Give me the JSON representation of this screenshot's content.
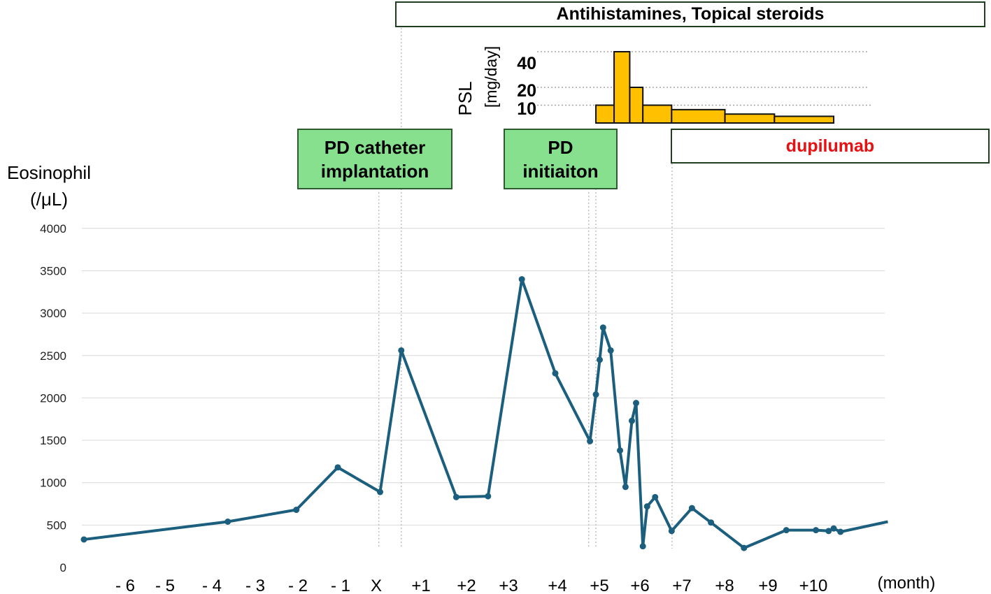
{
  "chart_data": {
    "type": "line",
    "ylabel_line1": "Eosinophil",
    "ylabel_line2": "(/μL)",
    "xunit": "(month)",
    "ylim": [
      0,
      4000
    ],
    "yticks": [
      0,
      500,
      1000,
      1500,
      2000,
      2500,
      3000,
      3500,
      4000
    ],
    "xlim": [
      -7,
      12
    ],
    "xticks": [
      {
        "pos": -6,
        "label": "- 6"
      },
      {
        "pos": -5,
        "label": "- 5"
      },
      {
        "pos": -4,
        "label": "- 4"
      },
      {
        "pos": -3,
        "label": "- 3"
      },
      {
        "pos": -2,
        "label": "- 2"
      },
      {
        "pos": -1,
        "label": "- 1"
      },
      {
        "pos": 0,
        "label": "X"
      },
      {
        "pos": 1,
        "label": "+1"
      },
      {
        "pos": 2,
        "label": "+2"
      },
      {
        "pos": 3,
        "label": "+3"
      },
      {
        "pos": 4,
        "label": "+4"
      },
      {
        "pos": 5,
        "label": "+5"
      },
      {
        "pos": 6,
        "label": "+6"
      },
      {
        "pos": 7,
        "label": "+7"
      },
      {
        "pos": 8,
        "label": "+8"
      },
      {
        "pos": 9,
        "label": "+9"
      },
      {
        "pos": 10,
        "label": "+10"
      }
    ],
    "grid": true,
    "line_color": "#1b5e7e",
    "series": [
      {
        "x": [
          -7.0,
          -3.6,
          -1.98,
          -1.0,
          0.0,
          0.5,
          1.8,
          2.55,
          3.35,
          4.14,
          4.96,
          5.1,
          5.19,
          5.27,
          5.45,
          5.67,
          5.8,
          5.95,
          6.05,
          6.21,
          6.31,
          6.5,
          6.89,
          7.37,
          7.82,
          8.6,
          9.6,
          10.3,
          10.6,
          10.72,
          10.88,
          12.0
        ],
        "y": [
          330,
          540,
          680,
          1180,
          890,
          2560,
          830,
          840,
          3400,
          2290,
          1490,
          2040,
          2450,
          2830,
          2560,
          1380,
          950,
          1730,
          1940,
          250,
          720,
          830,
          430,
          700,
          530,
          230,
          440,
          440,
          430,
          460,
          420,
          540
        ]
      }
    ],
    "markers": [
      {
        "label": "PD catheter\nimplantation",
        "at_month": -0.03
      },
      {
        "label": "PD\ninitiaiton",
        "at_month": 4.93
      }
    ],
    "treatments": [
      {
        "label": "Antihistamines, Topical steroids",
        "start_month": 0.5,
        "color": "#000000"
      },
      {
        "label": "dupilumab",
        "start_month": 6.9,
        "color": "#e81010"
      }
    ],
    "psl": {
      "ylabel_line1": "PSL",
      "ylabel_line2": "[mg/day]",
      "yticks": [
        10,
        20,
        40
      ],
      "reference_lines": [
        40,
        20,
        10
      ],
      "bar_color": "#ffc000",
      "bars": [
        {
          "start_month": 5.1,
          "end_month": 5.53,
          "value": 10
        },
        {
          "start_month": 5.53,
          "end_month": 5.9,
          "value": 40
        },
        {
          "start_month": 5.9,
          "end_month": 6.21,
          "value": 20
        },
        {
          "start_month": 6.21,
          "end_month": 6.89,
          "value": 10
        },
        {
          "start_month": 6.89,
          "end_month": 8.15,
          "value": 7.5
        },
        {
          "start_month": 8.15,
          "end_month": 9.32,
          "value": 5
        },
        {
          "start_month": 9.32,
          "end_month": 10.72,
          "value": 3.75
        }
      ]
    }
  }
}
